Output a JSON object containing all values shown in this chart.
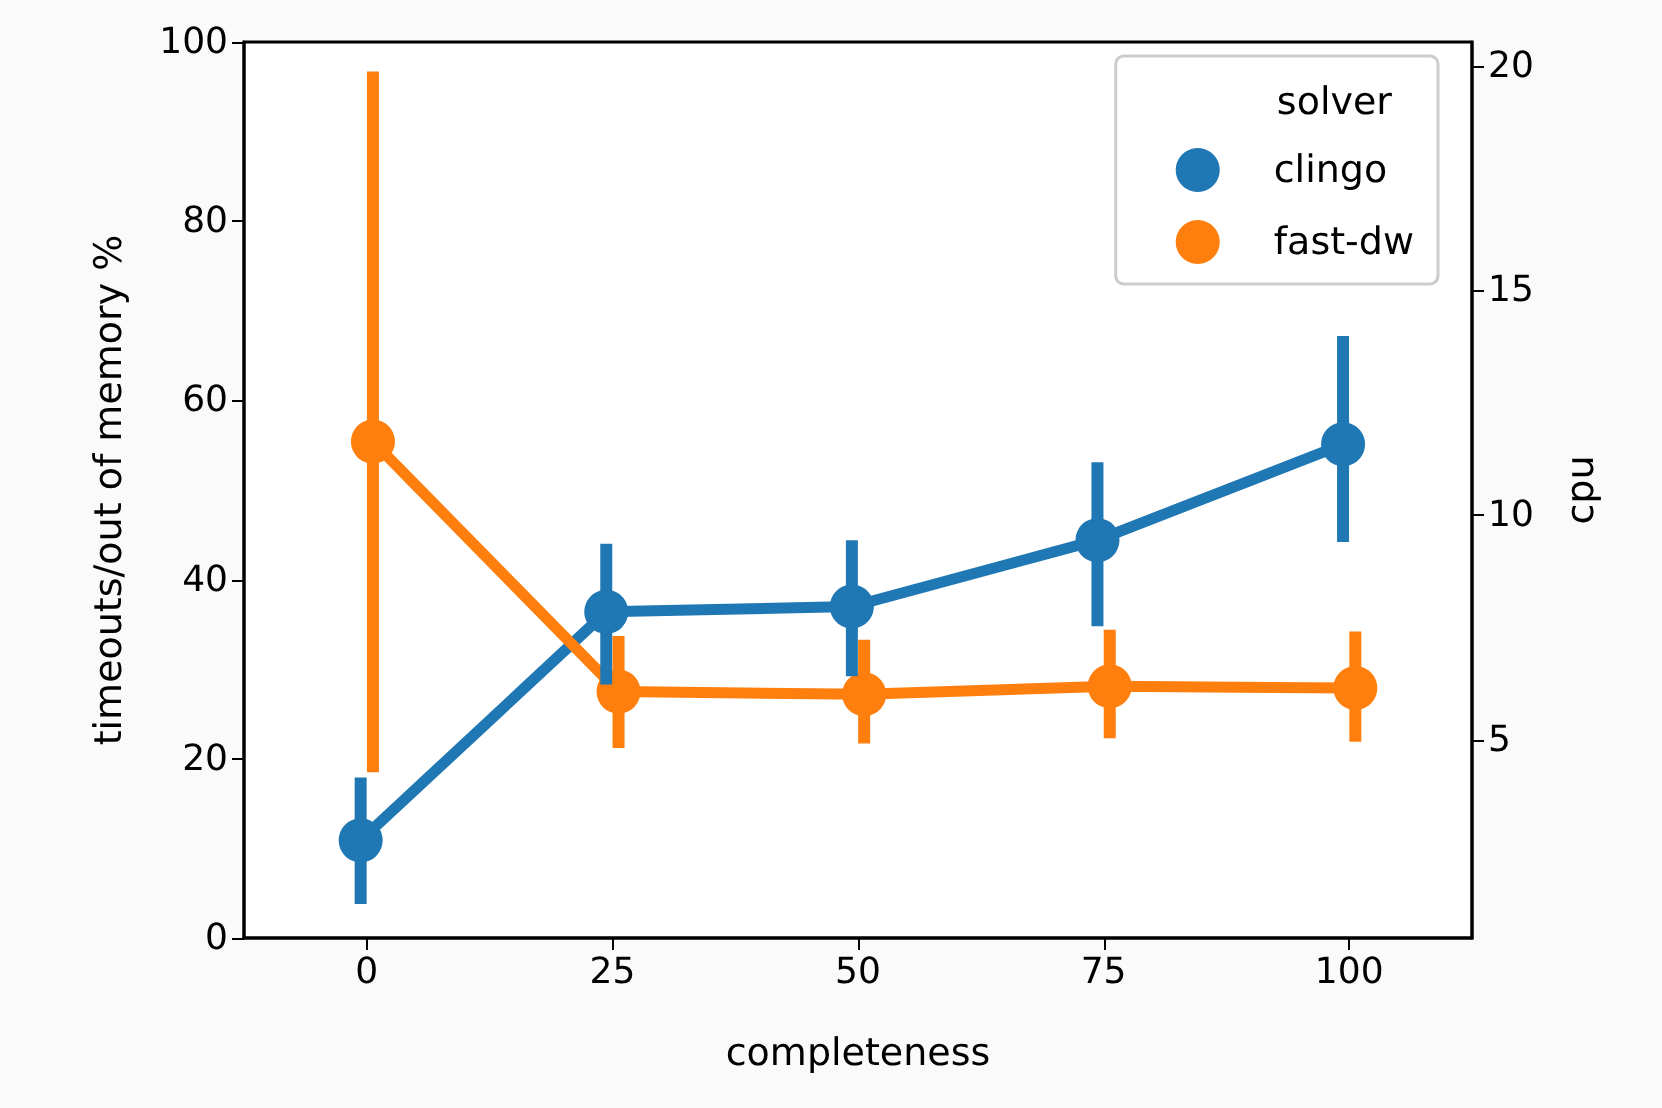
{
  "chart_data": {
    "type": "line",
    "xlabel": "completeness",
    "ylabel": "timeouts/out of memory %",
    "y2label": "cpu",
    "legend_title": "solver",
    "categories": [
      "0",
      "25",
      "50",
      "75",
      "100"
    ],
    "series": [
      {
        "name": "clingo",
        "color": "#1f77b4",
        "values": [
          10.9,
          36.4,
          37.0,
          44.4,
          55.1
        ],
        "errors": [
          [
            3.8,
            17.9
          ],
          [
            28.3,
            44.0
          ],
          [
            29.2,
            44.4
          ],
          [
            34.8,
            53.1
          ],
          [
            44.2,
            67.2
          ]
        ]
      },
      {
        "name": "fast-dw",
        "color": "#ff7f0e",
        "values": [
          55.4,
          27.5,
          27.2,
          28.1,
          27.9
        ],
        "errors": [
          [
            18.5,
            96.7
          ],
          [
            21.2,
            33.7
          ],
          [
            21.7,
            33.3
          ],
          [
            22.3,
            34.4
          ],
          [
            21.9,
            34.2
          ]
        ]
      }
    ],
    "ylim": [
      0,
      100
    ],
    "yticks": [
      0,
      20,
      40,
      60,
      80,
      100
    ],
    "y2lim": [
      0.59,
      20.53
    ],
    "y2ticks": [
      5,
      10,
      15,
      20
    ],
    "grid": false,
    "legend": "top right",
    "marker": "circle",
    "line_style": "solid"
  }
}
